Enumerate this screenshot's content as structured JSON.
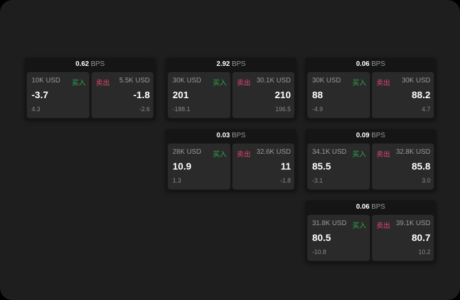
{
  "bps_unit": "BPS",
  "buy_label": "买入",
  "sell_label": "卖出",
  "colors": {
    "buy": "#2fa84f",
    "sell": "#e0456e",
    "background": "#1e1e1e"
  },
  "groups": [
    {
      "bps": "0.62",
      "buy": {
        "size": "10K USD",
        "price": "-3.7",
        "delta": "4.3"
      },
      "sell": {
        "size": "5.5K USD",
        "price": "-1.8",
        "delta": "-2.6"
      }
    },
    {
      "bps": "2.92",
      "buy": {
        "size": "30K USD",
        "price": "201",
        "delta": "-188.1"
      },
      "sell": {
        "size": "30.1K USD",
        "price": "210",
        "delta": "196.5"
      }
    },
    {
      "bps": "0.06",
      "buy": {
        "size": "30K USD",
        "price": "88",
        "delta": "-4.9"
      },
      "sell": {
        "size": "30K USD",
        "price": "88.2",
        "delta": "4.7"
      }
    },
    {
      "bps": "0.03",
      "buy": {
        "size": "28K USD",
        "price": "10.9",
        "delta": "1.3"
      },
      "sell": {
        "size": "32.6K USD",
        "price": "11",
        "delta": "-1.8"
      }
    },
    {
      "bps": "0.09",
      "buy": {
        "size": "34.1K USD",
        "price": "85.5",
        "delta": "-3.1"
      },
      "sell": {
        "size": "32.8K USD",
        "price": "85.8",
        "delta": "3.0"
      }
    },
    {
      "bps": "0.06",
      "buy": {
        "size": "31.8K USD",
        "price": "80.5",
        "delta": "-10.8"
      },
      "sell": {
        "size": "39.1K USD",
        "price": "80.7",
        "delta": "10.2"
      }
    }
  ]
}
